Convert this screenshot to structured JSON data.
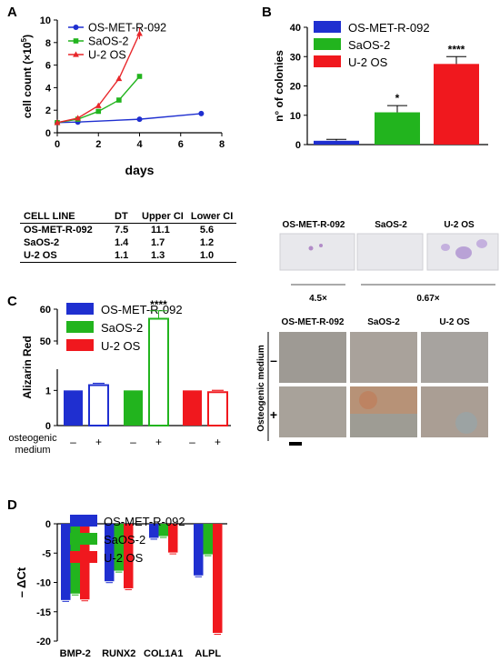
{
  "panels": {
    "A": {
      "letter": "A",
      "chart_data": {
        "type": "line",
        "xlabel": "days",
        "ylabel": "cell count (×10",
        "ylabel_sup": "5",
        "ylabel_close": ")",
        "xlim": [
          0,
          8
        ],
        "ylim": [
          0,
          10
        ],
        "xticks": [
          0,
          2,
          4,
          6,
          8
        ],
        "yticks": [
          0,
          2,
          4,
          6,
          8,
          10
        ],
        "series": [
          {
            "name": "OS-MET-R-092",
            "color": "#1f2fd0",
            "marker": "circle",
            "x": [
              0,
              1,
              4,
              7
            ],
            "y": [
              0.9,
              0.95,
              1.2,
              1.7
            ]
          },
          {
            "name": "SaOS-2",
            "color": "#22b41e",
            "marker": "square",
            "x": [
              0,
              1,
              2,
              3,
              4
            ],
            "y": [
              0.9,
              1.2,
              1.9,
              2.9,
              5.0
            ]
          },
          {
            "name": "U-2 OS",
            "color": "#e8262a",
            "marker": "triangle",
            "x": [
              0,
              1,
              2,
              3,
              4
            ],
            "y": [
              0.9,
              1.3,
              2.4,
              4.8,
              8.8
            ]
          }
        ]
      },
      "table": {
        "headers": [
          "CELL LINE",
          "DT",
          "Upper CI",
          "Lower CI"
        ],
        "rows": [
          [
            "OS-MET-R-092",
            "7.5",
            "11.1",
            "5.6"
          ],
          [
            "SaOS-2",
            "1.4",
            "1.7",
            "1.2"
          ],
          [
            "U-2 OS",
            "1.1",
            "1.3",
            "1.0"
          ]
        ]
      }
    },
    "B": {
      "letter": "B",
      "chart_data": {
        "type": "bar",
        "ylabel": "n° of colonies",
        "ylim": [
          0,
          40
        ],
        "yticks": [
          0,
          10,
          20,
          30,
          40
        ],
        "categories": [
          "OS-MET-R-092",
          "SaOS-2",
          "U-2 OS"
        ],
        "values": [
          1.3,
          11,
          27.5
        ],
        "errors": [
          0.5,
          2.3,
          2.5
        ],
        "colors": [
          "#1f2fd0",
          "#22b41e",
          "#f0181e"
        ],
        "significance": [
          "",
          "*",
          "****"
        ]
      },
      "images": {
        "labels": [
          "OS-MET-R-092",
          "SaOS-2",
          "U-2 OS"
        ],
        "magnifications": [
          "4.5×",
          "0.67×"
        ]
      }
    },
    "C": {
      "letter": "C",
      "chart_data": {
        "type": "bar",
        "ylabel": "Alizarin Red",
        "yticks_top": [
          "60",
          "50"
        ],
        "yticks_bottom": [
          "1",
          "0"
        ],
        "groups": [
          "OS-MET-R-092",
          "SaOS-2",
          "U-2 OS"
        ],
        "colors": [
          "#1f2fd0",
          "#22b41e",
          "#f0181e"
        ],
        "values_minus": [
          1,
          1,
          1
        ],
        "values_plus": [
          1.15,
          57,
          0.95
        ],
        "significance": "****",
        "xlabel_line1": "osteogenic",
        "xlabel_line2": "medium",
        "conditions": [
          "–",
          "+"
        ]
      },
      "images": {
        "labels": [
          "OS-MET-R-092",
          "SaOS-2",
          "U-2 OS"
        ],
        "row_title": "Osteogenic medium",
        "rows": [
          "–",
          "+"
        ]
      }
    },
    "D": {
      "letter": "D",
      "chart_data": {
        "type": "bar",
        "ylabel": "– ΔCt",
        "ylim": [
          -20,
          0
        ],
        "yticks": [
          0,
          -5,
          -10,
          -15,
          -20
        ],
        "categories": [
          "BMP-2",
          "RUNX2",
          "COL1A1",
          "ALPL"
        ],
        "series": [
          {
            "name": "OS-MET-R-092",
            "color": "#1f2fd0",
            "values": [
              -13.0,
              -9.8,
              -2.4,
              -8.8
            ]
          },
          {
            "name": "SaOS-2",
            "color": "#22b41e",
            "values": [
              -11.9,
              -8.0,
              -2.1,
              -5.2
            ]
          },
          {
            "name": "U-2 OS",
            "color": "#f0181e",
            "values": [
              -12.9,
              -11.0,
              -4.9,
              -18.6
            ]
          }
        ]
      }
    }
  }
}
